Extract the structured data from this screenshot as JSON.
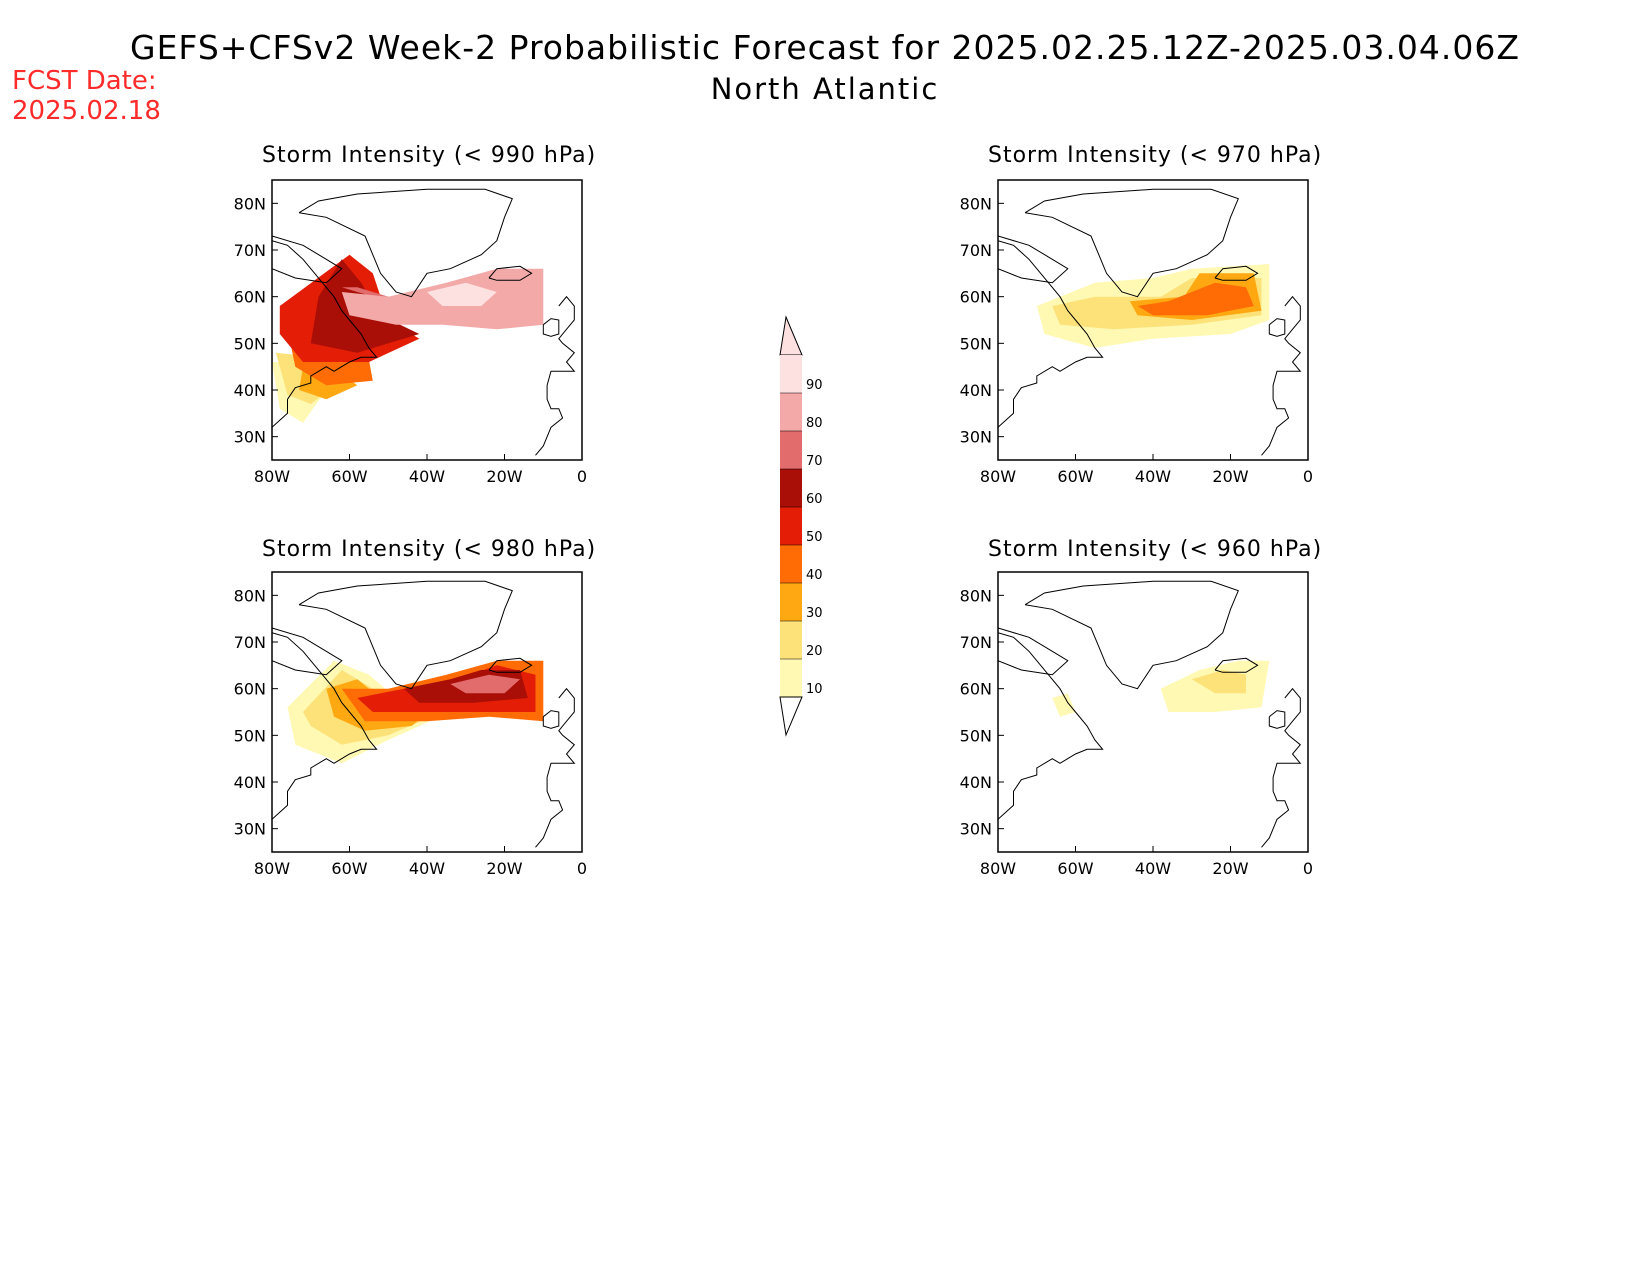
{
  "header": {
    "title_line1": "GEFS+CFSv2 Week-2 Probabilistic Forecast for 2025.02.25.12Z-2025.03.04.06Z",
    "title_line2": "North Atlantic",
    "fcst_label": "FCST Date:",
    "fcst_date": "2025.02.18"
  },
  "colors": {
    "scale": [
      "#fff9b4",
      "#fde27a",
      "#ffa812",
      "#ff6b05",
      "#e41d07",
      "#a90e07",
      "#e26b6b",
      "#f4a9a9",
      "#fde0e0"
    ],
    "land_outline": "#000000"
  },
  "chart_data": [
    {
      "type": "heatmap",
      "title": "Storm Intensity (< 990 hPa)",
      "xticks": [
        "80W",
        "60W",
        "40W",
        "20W",
        "0"
      ],
      "yticks": [
        "80N",
        "70N",
        "60N",
        "50N",
        "40N",
        "30N"
      ],
      "xlim": [
        -80,
        0
      ],
      "ylim": [
        25,
        85
      ],
      "regions": [
        {
          "level": 10,
          "points": [
            [
              -80,
              46
            ],
            [
              -70,
              46
            ],
            [
              -66,
              40
            ],
            [
              -72,
              33
            ],
            [
              -78,
              36
            ]
          ]
        },
        {
          "level": 20,
          "points": [
            [
              -79,
              48
            ],
            [
              -68,
              47
            ],
            [
              -62,
              42
            ],
            [
              -70,
              37
            ],
            [
              -76,
              39
            ]
          ]
        },
        {
          "level": 30,
          "points": [
            [
              -72,
              45
            ],
            [
              -63,
              44
            ],
            [
              -58,
              41
            ],
            [
              -66,
              38
            ],
            [
              -73,
              40
            ]
          ]
        },
        {
          "level": 40,
          "points": [
            [
              -76,
              53
            ],
            [
              -56,
              51
            ],
            [
              -54,
              42
            ],
            [
              -66,
              41
            ],
            [
              -74,
              45
            ]
          ]
        },
        {
          "level": 50,
          "points": [
            [
              -78,
              58
            ],
            [
              -60,
              69
            ],
            [
              -54,
              65
            ],
            [
              -50,
              55
            ],
            [
              -42,
              51
            ],
            [
              -55,
              46
            ],
            [
              -72,
              46
            ],
            [
              -78,
              52
            ]
          ]
        },
        {
          "level": 60,
          "points": [
            [
              -68,
              60
            ],
            [
              -62,
              68
            ],
            [
              -57,
              63
            ],
            [
              -52,
              56
            ],
            [
              -42,
              52
            ],
            [
              -58,
              48
            ],
            [
              -70,
              50
            ]
          ]
        },
        {
          "level": 70,
          "points": [
            [
              -62,
              62
            ],
            [
              -54,
              60
            ],
            [
              -46,
              56
            ],
            [
              -30,
              55
            ],
            [
              -18,
              54
            ],
            [
              -28,
              59
            ],
            [
              -42,
              58
            ],
            [
              -58,
              62
            ]
          ]
        },
        {
          "level": 80,
          "points": [
            [
              -62,
              61
            ],
            [
              -50,
              60
            ],
            [
              -35,
              63
            ],
            [
              -22,
              66
            ],
            [
              -10,
              66
            ],
            [
              -10,
              54
            ],
            [
              -22,
              53
            ],
            [
              -36,
              54
            ],
            [
              -48,
              54
            ],
            [
              -60,
              56
            ]
          ]
        },
        {
          "level": 90,
          "points": [
            [
              -40,
              61
            ],
            [
              -30,
              63
            ],
            [
              -22,
              61
            ],
            [
              -26,
              58
            ],
            [
              -36,
              58
            ]
          ]
        }
      ]
    },
    {
      "type": "heatmap",
      "title": "Storm Intensity (< 970 hPa)",
      "xticks": [
        "80W",
        "60W",
        "40W",
        "20W",
        "0"
      ],
      "yticks": [
        "80N",
        "70N",
        "60N",
        "50N",
        "40N",
        "30N"
      ],
      "xlim": [
        -80,
        0
      ],
      "ylim": [
        25,
        85
      ],
      "regions": [
        {
          "level": 10,
          "points": [
            [
              -70,
              58
            ],
            [
              -55,
              63
            ],
            [
              -40,
              64
            ],
            [
              -30,
              66
            ],
            [
              -10,
              67
            ],
            [
              -10,
              55
            ],
            [
              -20,
              52
            ],
            [
              -40,
              51
            ],
            [
              -55,
              49
            ],
            [
              -68,
              52
            ]
          ]
        },
        {
          "level": 20,
          "points": [
            [
              -66,
              58
            ],
            [
              -55,
              60
            ],
            [
              -38,
              60
            ],
            [
              -30,
              64
            ],
            [
              -12,
              64
            ],
            [
              -12,
              56
            ],
            [
              -30,
              54
            ],
            [
              -50,
              53
            ],
            [
              -64,
              54
            ]
          ]
        },
        {
          "level": 30,
          "points": [
            [
              -46,
              59
            ],
            [
              -32,
              60
            ],
            [
              -28,
              65
            ],
            [
              -14,
              65
            ],
            [
              -12,
              57
            ],
            [
              -30,
              55
            ],
            [
              -44,
              56
            ]
          ]
        },
        {
          "level": 40,
          "points": [
            [
              -44,
              58
            ],
            [
              -36,
              59
            ],
            [
              -24,
              63
            ],
            [
              -16,
              62
            ],
            [
              -14,
              58
            ],
            [
              -26,
              56
            ],
            [
              -40,
              56
            ]
          ]
        }
      ]
    },
    {
      "type": "heatmap",
      "title": "Storm Intensity (< 980 hPa)",
      "xticks": [
        "80W",
        "60W",
        "40W",
        "20W",
        "0"
      ],
      "yticks": [
        "80N",
        "70N",
        "60N",
        "50N",
        "40N",
        "30N"
      ],
      "xlim": [
        -80,
        0
      ],
      "ylim": [
        25,
        85
      ],
      "regions": [
        {
          "level": 10,
          "points": [
            [
              -76,
              56
            ],
            [
              -64,
              66
            ],
            [
              -55,
              63
            ],
            [
              -48,
              58
            ],
            [
              -34,
              55
            ],
            [
              -50,
              49
            ],
            [
              -62,
              44
            ],
            [
              -74,
              48
            ]
          ]
        },
        {
          "level": 20,
          "points": [
            [
              -72,
              55
            ],
            [
              -62,
              64
            ],
            [
              -54,
              60
            ],
            [
              -42,
              57
            ],
            [
              -36,
              55
            ],
            [
              -50,
              50
            ],
            [
              -62,
              48
            ],
            [
              -70,
              52
            ]
          ]
        },
        {
          "level": 30,
          "points": [
            [
              -66,
              60
            ],
            [
              -58,
              62
            ],
            [
              -52,
              58
            ],
            [
              -38,
              56
            ],
            [
              -44,
              52
            ],
            [
              -56,
              51
            ],
            [
              -64,
              54
            ]
          ]
        },
        {
          "level": 40,
          "points": [
            [
              -62,
              60
            ],
            [
              -50,
              60
            ],
            [
              -35,
              63
            ],
            [
              -22,
              66
            ],
            [
              -10,
              66
            ],
            [
              -10,
              53
            ],
            [
              -24,
              54
            ],
            [
              -40,
              53
            ],
            [
              -56,
              53
            ]
          ]
        },
        {
          "level": 50,
          "points": [
            [
              -58,
              58
            ],
            [
              -46,
              60
            ],
            [
              -32,
              62
            ],
            [
              -22,
              65
            ],
            [
              -12,
              63
            ],
            [
              -12,
              55
            ],
            [
              -26,
              55
            ],
            [
              -42,
              55
            ],
            [
              -54,
              55
            ]
          ]
        },
        {
          "level": 60,
          "points": [
            [
              -46,
              60
            ],
            [
              -34,
              62
            ],
            [
              -26,
              64
            ],
            [
              -16,
              64
            ],
            [
              -14,
              58
            ],
            [
              -28,
              57
            ],
            [
              -42,
              57
            ]
          ]
        },
        {
          "level": 70,
          "points": [
            [
              -34,
              61
            ],
            [
              -24,
              63
            ],
            [
              -16,
              62
            ],
            [
              -20,
              59
            ],
            [
              -30,
              59
            ]
          ]
        }
      ]
    },
    {
      "type": "heatmap",
      "title": "Storm Intensity (< 960 hPa)",
      "xticks": [
        "80W",
        "60W",
        "40W",
        "20W",
        "0"
      ],
      "yticks": [
        "80N",
        "70N",
        "60N",
        "50N",
        "40N",
        "30N"
      ],
      "xlim": [
        -80,
        0
      ],
      "ylim": [
        25,
        85
      ],
      "regions": [
        {
          "level": 10,
          "points": [
            [
              -38,
              60
            ],
            [
              -28,
              64
            ],
            [
              -18,
              66
            ],
            [
              -10,
              66
            ],
            [
              -12,
              56
            ],
            [
              -24,
              55
            ],
            [
              -36,
              55
            ]
          ]
        },
        {
          "level": 10,
          "points": [
            [
              -66,
              58
            ],
            [
              -62,
              59
            ],
            [
              -60,
              55
            ],
            [
              -64,
              54
            ]
          ]
        },
        {
          "level": 20,
          "points": [
            [
              -30,
              62
            ],
            [
              -22,
              64
            ],
            [
              -16,
              63
            ],
            [
              -16,
              59
            ],
            [
              -24,
              59
            ]
          ]
        }
      ]
    }
  ],
  "colorbar": {
    "labels": [
      "90",
      "80",
      "70",
      "60",
      "50",
      "40",
      "30",
      "20",
      "10"
    ]
  }
}
